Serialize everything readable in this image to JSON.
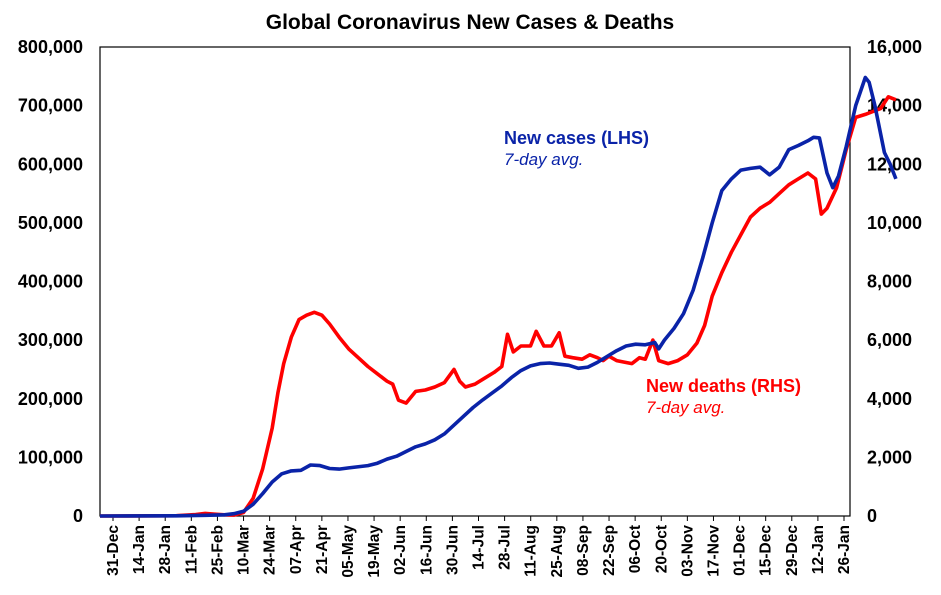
{
  "chart_data": {
    "type": "line",
    "title": "Global Coronavirus New Cases & Deaths",
    "x_ticks": [
      "31-Dec",
      "14-Jan",
      "28-Jan",
      "11-Feb",
      "25-Feb",
      "10-Mar",
      "24-Mar",
      "07-Apr",
      "21-Apr",
      "05-May",
      "19-May",
      "02-Jun",
      "16-Jun",
      "30-Jun",
      "14-Jul",
      "28-Jul",
      "11-Aug",
      "25-Aug",
      "08-Sep",
      "22-Sep",
      "06-Oct",
      "20-Oct",
      "03-Nov",
      "17-Nov",
      "01-Dec",
      "15-Dec",
      "29-Dec",
      "12-Jan",
      "26-Jan"
    ],
    "y_left": {
      "min": 0,
      "max": 800000,
      "ticks": [
        "0",
        "100,000",
        "200,000",
        "300,000",
        "400,000",
        "500,000",
        "600,000",
        "700,000",
        "800,000"
      ]
    },
    "y_right": {
      "min": 0,
      "max": 16000,
      "ticks": [
        "0",
        "2,000",
        "4,000",
        "6,000",
        "8,000",
        "10,000",
        "12,000",
        "14,000",
        "16,000"
      ]
    },
    "x_range_days": [
      0,
      392
    ],
    "series": [
      {
        "name": "New cases (LHS)",
        "sub": "7-day avg.",
        "axis": "left",
        "color": "#0a23a8",
        "points": [
          [
            0,
            0
          ],
          [
            40,
            300
          ],
          [
            55,
            1200
          ],
          [
            65,
            2000
          ],
          [
            70,
            4000
          ],
          [
            75,
            8000
          ],
          [
            80,
            20000
          ],
          [
            85,
            38000
          ],
          [
            90,
            58000
          ],
          [
            95,
            72000
          ],
          [
            100,
            77000
          ],
          [
            105,
            78000
          ],
          [
            110,
            87000
          ],
          [
            115,
            86000
          ],
          [
            120,
            81000
          ],
          [
            125,
            80000
          ],
          [
            130,
            82000
          ],
          [
            140,
            86000
          ],
          [
            145,
            90000
          ],
          [
            150,
            97000
          ],
          [
            155,
            102000
          ],
          [
            160,
            110000
          ],
          [
            165,
            118000
          ],
          [
            170,
            123000
          ],
          [
            175,
            130000
          ],
          [
            180,
            140000
          ],
          [
            185,
            155000
          ],
          [
            190,
            170000
          ],
          [
            195,
            185000
          ],
          [
            200,
            198000
          ],
          [
            205,
            210000
          ],
          [
            210,
            222000
          ],
          [
            215,
            236000
          ],
          [
            220,
            248000
          ],
          [
            225,
            256000
          ],
          [
            230,
            260000
          ],
          [
            235,
            261000
          ],
          [
            240,
            259000
          ],
          [
            245,
            257000
          ],
          [
            250,
            252000
          ],
          [
            255,
            254000
          ],
          [
            260,
            262000
          ],
          [
            265,
            272000
          ],
          [
            270,
            282000
          ],
          [
            275,
            290000
          ],
          [
            280,
            293000
          ],
          [
            285,
            292000
          ],
          [
            290,
            296000
          ],
          [
            292,
            285000
          ],
          [
            295,
            300000
          ],
          [
            300,
            320000
          ],
          [
            305,
            345000
          ],
          [
            310,
            385000
          ],
          [
            315,
            440000
          ],
          [
            320,
            500000
          ],
          [
            325,
            555000
          ],
          [
            330,
            575000
          ],
          [
            335,
            590000
          ],
          [
            340,
            593000
          ],
          [
            345,
            595000
          ],
          [
            350,
            582000
          ],
          [
            355,
            595000
          ],
          [
            360,
            625000
          ],
          [
            365,
            632000
          ],
          [
            370,
            640000
          ],
          [
            373,
            646000
          ],
          [
            376,
            645000
          ],
          [
            380,
            585000
          ],
          [
            383,
            560000
          ],
          [
            386,
            580000
          ],
          [
            390,
            630000
          ],
          [
            395,
            700000
          ],
          [
            400,
            748000
          ],
          [
            402,
            740000
          ],
          [
            405,
            700000
          ],
          [
            410,
            620000
          ],
          [
            413,
            600000
          ],
          [
            416,
            575000
          ]
        ]
      },
      {
        "name": "New deaths (RHS)",
        "sub": "7-day avg.",
        "axis": "right",
        "color": "#ff0000",
        "points": [
          [
            0,
            0
          ],
          [
            40,
            10
          ],
          [
            50,
            50
          ],
          [
            55,
            90
          ],
          [
            60,
            60
          ],
          [
            65,
            40
          ],
          [
            70,
            30
          ],
          [
            75,
            120
          ],
          [
            80,
            600
          ],
          [
            85,
            1600
          ],
          [
            90,
            3000
          ],
          [
            93,
            4200
          ],
          [
            96,
            5200
          ],
          [
            100,
            6100
          ],
          [
            104,
            6700
          ],
          [
            108,
            6850
          ],
          [
            112,
            6950
          ],
          [
            116,
            6850
          ],
          [
            120,
            6550
          ],
          [
            125,
            6100
          ],
          [
            130,
            5700
          ],
          [
            135,
            5400
          ],
          [
            140,
            5100
          ],
          [
            145,
            4850
          ],
          [
            150,
            4600
          ],
          [
            153,
            4500
          ],
          [
            156,
            3950
          ],
          [
            160,
            3850
          ],
          [
            165,
            4250
          ],
          [
            170,
            4300
          ],
          [
            175,
            4400
          ],
          [
            180,
            4550
          ],
          [
            185,
            5000
          ],
          [
            188,
            4600
          ],
          [
            191,
            4400
          ],
          [
            196,
            4500
          ],
          [
            201,
            4700
          ],
          [
            206,
            4900
          ],
          [
            210,
            5100
          ],
          [
            213,
            6200
          ],
          [
            216,
            5600
          ],
          [
            220,
            5800
          ],
          [
            225,
            5800
          ],
          [
            228,
            6300
          ],
          [
            232,
            5800
          ],
          [
            236,
            5800
          ],
          [
            240,
            6250
          ],
          [
            243,
            5450
          ],
          [
            247,
            5400
          ],
          [
            252,
            5350
          ],
          [
            256,
            5500
          ],
          [
            260,
            5400
          ],
          [
            263,
            5300
          ],
          [
            266,
            5450
          ],
          [
            270,
            5300
          ],
          [
            274,
            5250
          ],
          [
            278,
            5200
          ],
          [
            282,
            5400
          ],
          [
            285,
            5350
          ],
          [
            289,
            6000
          ],
          [
            292,
            5300
          ],
          [
            297,
            5200
          ],
          [
            302,
            5300
          ],
          [
            307,
            5500
          ],
          [
            312,
            5900
          ],
          [
            316,
            6500
          ],
          [
            320,
            7500
          ],
          [
            325,
            8300
          ],
          [
            330,
            9000
          ],
          [
            335,
            9600
          ],
          [
            340,
            10200
          ],
          [
            345,
            10500
          ],
          [
            350,
            10700
          ],
          [
            355,
            11000
          ],
          [
            360,
            11300
          ],
          [
            365,
            11500
          ],
          [
            370,
            11700
          ],
          [
            374,
            11500
          ],
          [
            377,
            10300
          ],
          [
            380,
            10500
          ],
          [
            385,
            11200
          ],
          [
            390,
            12500
          ],
          [
            395,
            13600
          ],
          [
            400,
            13700
          ],
          [
            404,
            13800
          ],
          [
            408,
            13900
          ],
          [
            412,
            14300
          ],
          [
            416,
            14200
          ]
        ]
      }
    ]
  }
}
